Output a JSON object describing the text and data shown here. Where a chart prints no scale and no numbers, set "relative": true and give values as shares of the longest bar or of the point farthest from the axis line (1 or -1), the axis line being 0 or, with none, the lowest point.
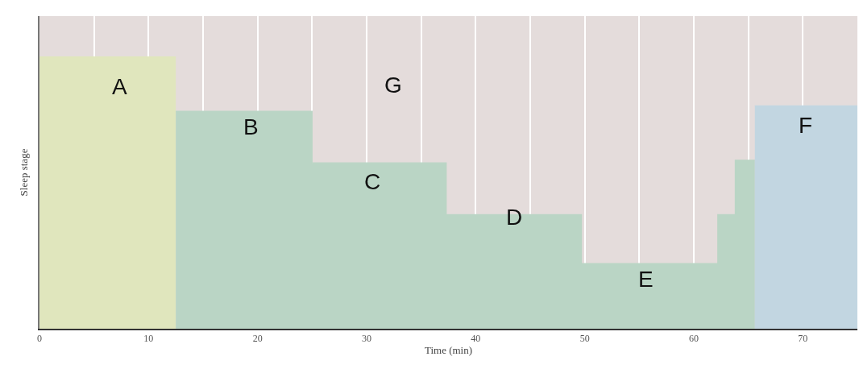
{
  "chart_data": {
    "type": "area",
    "relative": true,
    "xlabel": "Time (min)",
    "ylabel": "Sleep stage",
    "xlim": [
      0,
      75
    ],
    "xticks": [
      0,
      {
        "value": 5,
        "label": null
      },
      10,
      {
        "value": 15,
        "label": null
      },
      20,
      {
        "value": 25,
        "label": null
      },
      30,
      {
        "value": 35,
        "label": null
      },
      40,
      {
        "value": 45,
        "label": null
      },
      50,
      {
        "value": 55,
        "label": null
      },
      60,
      {
        "value": 65,
        "label": null
      },
      70
    ],
    "grid": "x",
    "series": [
      {
        "color": "#e0e6bd",
        "x": [
          0,
          12.5
        ],
        "values": [
          1.0,
          1.0
        ]
      },
      {
        "color": "#bad5c5",
        "x": [
          12.5,
          25,
          25,
          37.3,
          37.3,
          49.7,
          49.7,
          62.2,
          62.2,
          63.8,
          63.8,
          65.6
        ],
        "values": [
          0.8,
          0.8,
          0.61,
          0.61,
          0.42,
          0.42,
          0.24,
          0.24,
          0.42,
          0.42,
          0.62,
          0.62
        ]
      },
      {
        "color": "#c2d6e1",
        "x": [
          65.6,
          75
        ],
        "values": [
          0.82,
          0.82
        ]
      }
    ],
    "annotations": [
      "A",
      "B",
      "C",
      "D",
      "E",
      "F",
      "G"
    ]
  }
}
